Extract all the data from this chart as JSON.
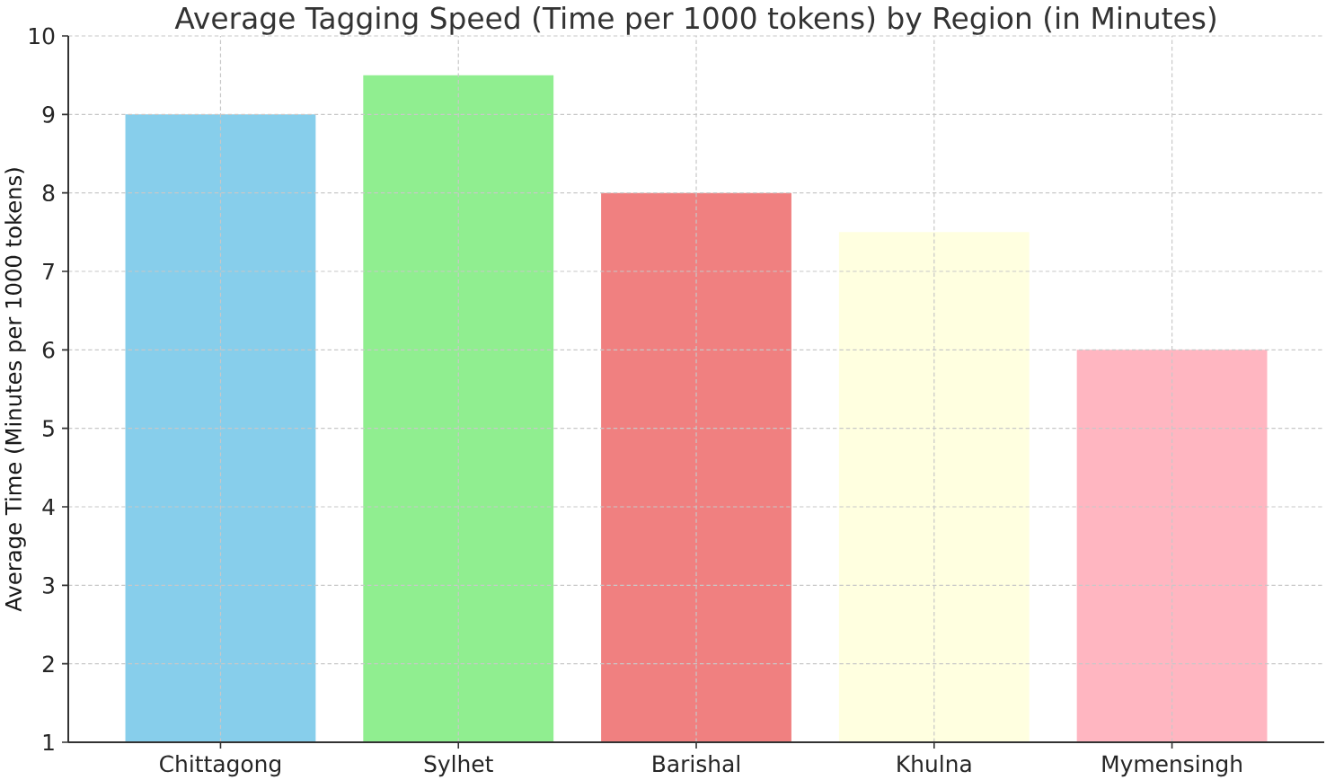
{
  "chart_data": {
    "type": "bar",
    "title": "Average Tagging Speed (Time per 1000 tokens) by Region (in Minutes)",
    "ylabel": "Average Time (Minutes per 1000 tokens)",
    "categories": [
      "Chittagong",
      "Sylhet",
      "Barishal",
      "Khulna",
      "Mymensingh"
    ],
    "values": [
      9,
      9.5,
      8,
      7.5,
      6
    ],
    "colors": [
      "#87ceeb",
      "#90ee90",
      "#f08080",
      "#ffffe0",
      "#ffb6c1"
    ],
    "ylim": [
      1,
      10
    ],
    "yticks": [
      1,
      2,
      3,
      4,
      5,
      6,
      7,
      8,
      9,
      10
    ],
    "grid": true
  }
}
